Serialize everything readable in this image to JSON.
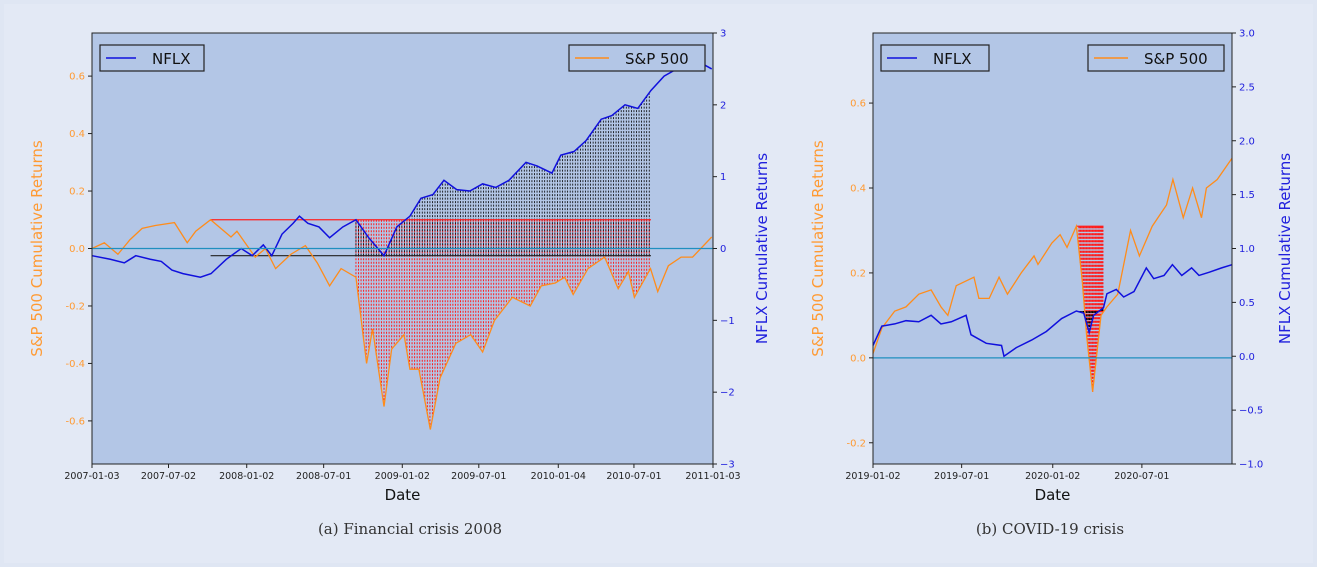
{
  "chart_data": [
    {
      "type": "line",
      "caption": "(a) Financial crisis 2008",
      "xlabel": "Date",
      "ylabel_left": "S&P 500 Cumulative Returns",
      "ylabel_right": "NFLX Cumulative Returns",
      "xlim": [
        "2007-01-03",
        "2011-01-03"
      ],
      "ylim_left": [
        -0.75,
        0.75
      ],
      "ylim_right": [
        -3,
        3
      ],
      "xticks": [
        "2007-01-03",
        "2007-07-02",
        "2008-01-02",
        "2008-07-01",
        "2009-01-02",
        "2009-07-01",
        "2010-01-04",
        "2010-07-01",
        "2011-01-03"
      ],
      "yticks_left": [
        "0.6",
        "0.4",
        "0.2",
        "0.0",
        "-0.2",
        "-0.4",
        "-0.6"
      ],
      "yticks_right": [
        "3",
        "2",
        "1",
        "0",
        "-1",
        "-2",
        "-3"
      ],
      "legend": [
        {
          "name": "NFLX",
          "position": "top-left"
        },
        {
          "name": "S&P 500",
          "position": "top-right"
        }
      ],
      "zero_line": 0,
      "peak_line_sp500": {
        "value": 0.1,
        "from": "2007-10-09",
        "to": "2010-08-10"
      },
      "peak_line_nflx": {
        "value": -0.1,
        "from": "2007-10-09",
        "to": "2010-08-10"
      },
      "drawdown_range": [
        "2008-09-15",
        "2010-08-10"
      ],
      "series": [
        {
          "name": "S&P 500",
          "axis": "left",
          "color": "#ff8c1a",
          "points": [
            [
              "2007-01-03",
              0.0
            ],
            [
              "2007-02-01",
              0.02
            ],
            [
              "2007-03-05",
              -0.02
            ],
            [
              "2007-04-02",
              0.03
            ],
            [
              "2007-05-01",
              0.07
            ],
            [
              "2007-06-01",
              0.08
            ],
            [
              "2007-07-16",
              0.09
            ],
            [
              "2007-08-15",
              0.02
            ],
            [
              "2007-09-04",
              0.06
            ],
            [
              "2007-10-09",
              0.1
            ],
            [
              "2007-11-26",
              0.04
            ],
            [
              "2007-12-10",
              0.06
            ],
            [
              "2008-01-22",
              -0.03
            ],
            [
              "2008-02-15",
              0.0
            ],
            [
              "2008-03-10",
              -0.07
            ],
            [
              "2008-04-15",
              -0.02
            ],
            [
              "2008-05-19",
              0.01
            ],
            [
              "2008-06-16",
              -0.05
            ],
            [
              "2008-07-15",
              -0.13
            ],
            [
              "2008-08-11",
              -0.07
            ],
            [
              "2008-09-15",
              -0.1
            ],
            [
              "2008-10-10",
              -0.4
            ],
            [
              "2008-10-24",
              -0.28
            ],
            [
              "2008-11-20",
              -0.55
            ],
            [
              "2008-12-08",
              -0.35
            ],
            [
              "2009-01-06",
              -0.3
            ],
            [
              "2009-01-20",
              -0.42
            ],
            [
              "2009-02-10",
              -0.42
            ],
            [
              "2009-03-09",
              -0.63
            ],
            [
              "2009-04-01",
              -0.45
            ],
            [
              "2009-05-08",
              -0.33
            ],
            [
              "2009-06-12",
              -0.3
            ],
            [
              "2009-07-10",
              -0.36
            ],
            [
              "2009-08-07",
              -0.25
            ],
            [
              "2009-09-18",
              -0.17
            ],
            [
              "2009-10-30",
              -0.2
            ],
            [
              "2009-11-25",
              -0.13
            ],
            [
              "2009-12-28",
              -0.12
            ],
            [
              "2010-01-19",
              -0.1
            ],
            [
              "2010-02-08",
              -0.16
            ],
            [
              "2010-03-15",
              -0.07
            ],
            [
              "2010-04-23",
              -0.03
            ],
            [
              "2010-05-25",
              -0.14
            ],
            [
              "2010-06-18",
              -0.08
            ],
            [
              "2010-07-02",
              -0.17
            ],
            [
              "2010-08-09",
              -0.07
            ],
            [
              "2010-08-26",
              -0.15
            ],
            [
              "2010-09-20",
              -0.06
            ],
            [
              "2010-10-20",
              -0.03
            ],
            [
              "2010-11-16",
              -0.03
            ],
            [
              "2010-12-31",
              0.04
            ]
          ]
        },
        {
          "name": "NFLX",
          "axis": "right",
          "color": "#1010dd",
          "points": [
            [
              "2007-01-03",
              -0.1
            ],
            [
              "2007-02-15",
              -0.15
            ],
            [
              "2007-03-20",
              -0.2
            ],
            [
              "2007-04-16",
              -0.1
            ],
            [
              "2007-05-20",
              -0.15
            ],
            [
              "2007-06-15",
              -0.18
            ],
            [
              "2007-07-10",
              -0.3
            ],
            [
              "2007-08-05",
              -0.35
            ],
            [
              "2007-09-15",
              -0.4
            ],
            [
              "2007-10-10",
              -0.35
            ],
            [
              "2007-11-15",
              -0.15
            ],
            [
              "2007-12-20",
              0.0
            ],
            [
              "2008-01-15",
              -0.1
            ],
            [
              "2008-02-10",
              0.05
            ],
            [
              "2008-03-01",
              -0.1
            ],
            [
              "2008-03-25",
              0.2
            ],
            [
              "2008-04-20",
              0.35
            ],
            [
              "2008-05-05",
              0.45
            ],
            [
              "2008-05-25",
              0.35
            ],
            [
              "2008-06-20",
              0.3
            ],
            [
              "2008-07-15",
              0.15
            ],
            [
              "2008-08-15",
              0.3
            ],
            [
              "2008-09-15",
              0.4
            ],
            [
              "2008-10-15",
              0.15
            ],
            [
              "2008-11-20",
              -0.1
            ],
            [
              "2008-12-20",
              0.3
            ],
            [
              "2009-01-20",
              0.45
            ],
            [
              "2009-02-15",
              0.7
            ],
            [
              "2009-03-15",
              0.75
            ],
            [
              "2009-04-10",
              0.95
            ],
            [
              "2009-05-10",
              0.82
            ],
            [
              "2009-06-10",
              0.8
            ],
            [
              "2009-07-10",
              0.9
            ],
            [
              "2009-08-10",
              0.85
            ],
            [
              "2009-09-10",
              0.95
            ],
            [
              "2009-10-20",
              1.2
            ],
            [
              "2009-11-15",
              1.15
            ],
            [
              "2009-12-20",
              1.05
            ],
            [
              "2010-01-10",
              1.3
            ],
            [
              "2010-02-10",
              1.35
            ],
            [
              "2010-03-10",
              1.5
            ],
            [
              "2010-04-15",
              1.8
            ],
            [
              "2010-05-10",
              1.85
            ],
            [
              "2010-06-10",
              2.0
            ],
            [
              "2010-07-10",
              1.95
            ],
            [
              "2010-08-10",
              2.2
            ],
            [
              "2010-09-10",
              2.4
            ],
            [
              "2010-10-10",
              2.5
            ],
            [
              "2010-11-15",
              2.65
            ],
            [
              "2010-12-31",
              2.5
            ]
          ]
        }
      ]
    },
    {
      "type": "line",
      "caption": "(b) COVID-19 crisis",
      "xlabel": "Date",
      "ylabel_left": "S&P 500 Cumulative Returns",
      "ylabel_right": "NFLX Cumulative Returns",
      "xlim": [
        "2019-01-02",
        "2020-12-31"
      ],
      "ylim_left": [
        -0.25,
        0.765
      ],
      "ylim_right": [
        -1.0,
        3.0
      ],
      "xticks": [
        "2019-01-02",
        "2019-07-01",
        "2020-01-02",
        "2020-07-01"
      ],
      "yticks_left": [
        "0.6",
        "0.4",
        "0.2",
        "0.0",
        "-0.2"
      ],
      "yticks_right": [
        "3.0",
        "2.5",
        "2.0",
        "1.5",
        "1.0",
        "0.5",
        "0.0",
        "-0.5",
        "-1.0"
      ],
      "legend": [
        {
          "name": "NFLX",
          "position": "top-left"
        },
        {
          "name": "S&P 500",
          "position": "top-right"
        }
      ],
      "zero_line": 0,
      "peak_line_sp500": {
        "value": 0.31,
        "from": "2020-02-19",
        "to": "2020-04-14"
      },
      "drawdown_range": [
        "2020-02-24",
        "2020-04-14"
      ],
      "series": [
        {
          "name": "S&P 500",
          "axis": "left",
          "color": "#ff8c1a",
          "points": [
            [
              "2019-01-02",
              0.01
            ],
            [
              "2019-01-20",
              0.07
            ],
            [
              "2019-02-15",
              0.11
            ],
            [
              "2019-03-10",
              0.12
            ],
            [
              "2019-04-05",
              0.15
            ],
            [
              "2019-04-30",
              0.16
            ],
            [
              "2019-05-20",
              0.12
            ],
            [
              "2019-06-03",
              0.1
            ],
            [
              "2019-06-20",
              0.17
            ],
            [
              "2019-07-26",
              0.19
            ],
            [
              "2019-08-05",
              0.14
            ],
            [
              "2019-08-26",
              0.14
            ],
            [
              "2019-09-15",
              0.19
            ],
            [
              "2019-10-02",
              0.15
            ],
            [
              "2019-10-30",
              0.2
            ],
            [
              "2019-11-25",
              0.24
            ],
            [
              "2019-12-03",
              0.22
            ],
            [
              "2019-12-31",
              0.27
            ],
            [
              "2020-01-17",
              0.29
            ],
            [
              "2020-01-31",
              0.26
            ],
            [
              "2020-02-19",
              0.31
            ],
            [
              "2020-03-02",
              0.18
            ],
            [
              "2020-03-11",
              0.05
            ],
            [
              "2020-03-23",
              -0.08
            ],
            [
              "2020-04-09",
              0.1
            ],
            [
              "2020-04-21",
              0.12
            ],
            [
              "2020-05-13",
              0.15
            ],
            [
              "2020-06-08",
              0.3
            ],
            [
              "2020-06-26",
              0.24
            ],
            [
              "2020-07-22",
              0.31
            ],
            [
              "2020-08-20",
              0.36
            ],
            [
              "2020-09-02",
              0.42
            ],
            [
              "2020-09-23",
              0.33
            ],
            [
              "2020-10-12",
              0.4
            ],
            [
              "2020-10-30",
              0.33
            ],
            [
              "2020-11-09",
              0.4
            ],
            [
              "2020-12-01",
              0.42
            ],
            [
              "2020-12-31",
              0.47
            ]
          ]
        },
        {
          "name": "NFLX",
          "axis": "right",
          "color": "#1010dd",
          "points": [
            [
              "2019-01-02",
              0.1
            ],
            [
              "2019-01-20",
              0.28
            ],
            [
              "2019-02-15",
              0.3
            ],
            [
              "2019-03-10",
              0.33
            ],
            [
              "2019-04-05",
              0.32
            ],
            [
              "2019-04-30",
              0.38
            ],
            [
              "2019-05-20",
              0.3
            ],
            [
              "2019-06-10",
              0.32
            ],
            [
              "2019-07-10",
              0.38
            ],
            [
              "2019-07-20",
              0.2
            ],
            [
              "2019-08-20",
              0.12
            ],
            [
              "2019-09-20",
              0.1
            ],
            [
              "2019-09-25",
              0.0
            ],
            [
              "2019-10-20",
              0.08
            ],
            [
              "2019-11-20",
              0.15
            ],
            [
              "2019-12-20",
              0.23
            ],
            [
              "2020-01-20",
              0.35
            ],
            [
              "2020-02-19",
              0.42
            ],
            [
              "2020-03-05",
              0.4
            ],
            [
              "2020-03-16",
              0.22
            ],
            [
              "2020-03-25",
              0.38
            ],
            [
              "2020-04-14",
              0.45
            ],
            [
              "2020-04-21",
              0.58
            ],
            [
              "2020-05-10",
              0.62
            ],
            [
              "2020-05-25",
              0.55
            ],
            [
              "2020-06-15",
              0.6
            ],
            [
              "2020-07-10",
              0.82
            ],
            [
              "2020-07-25",
              0.72
            ],
            [
              "2020-08-15",
              0.75
            ],
            [
              "2020-09-01",
              0.85
            ],
            [
              "2020-09-20",
              0.75
            ],
            [
              "2020-10-10",
              0.82
            ],
            [
              "2020-10-25",
              0.75
            ],
            [
              "2020-11-15",
              0.78
            ],
            [
              "2020-12-10",
              0.82
            ],
            [
              "2020-12-31",
              0.85
            ]
          ]
        }
      ]
    }
  ]
}
